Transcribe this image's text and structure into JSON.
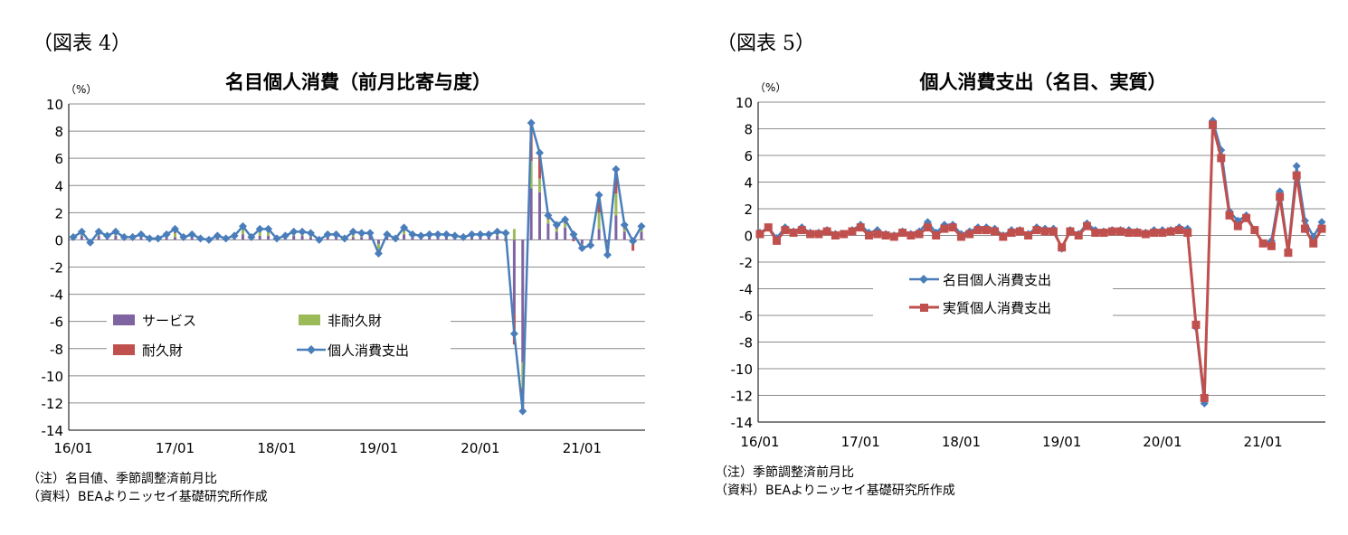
{
  "figure_labels": [
    "（図表 4）",
    "（図表 5）"
  ],
  "notes": {
    "chart1": [
      "（注）名目値、季節調整済前月比",
      "（資料）BEAよりニッセイ基礎研究所作成"
    ],
    "chart2": [
      "（注）季節調整済前月比",
      "（資料）BEAよりニッセイ基礎研究所作成"
    ]
  },
  "colors": {
    "services": "#8064A2",
    "nondurable": "#9BBB59",
    "durable": "#C0504D",
    "nominal": "#4A7EBB",
    "real": "#C0504D"
  },
  "chart_data": [
    {
      "type": "bar",
      "title": "名目個人消費（前月比寄与度）",
      "ylabel": "（%）",
      "ylim": [
        -14,
        10
      ],
      "yticks": [
        10,
        8,
        6,
        4,
        2,
        0,
        -2,
        -4,
        -6,
        -8,
        -10,
        -12,
        -14
      ],
      "xtick_labels": [
        "16/01",
        "17/01",
        "18/01",
        "19/01",
        "20/01",
        "21/01"
      ],
      "grid": true,
      "stacked": true,
      "series": [
        {
          "name": "サービス",
          "kind": "bar",
          "values": [
            0.1,
            0.3,
            0.0,
            0.3,
            0.2,
            0.3,
            0.1,
            0.1,
            0.2,
            0.1,
            0.1,
            0.2,
            0.2,
            0.1,
            0.2,
            0.1,
            0.0,
            0.2,
            0.1,
            0.2,
            0.4,
            0.1,
            0.3,
            0.3,
            0.1,
            0.2,
            0.3,
            0.3,
            0.2,
            0.1,
            0.2,
            0.2,
            0.1,
            0.2,
            0.2,
            0.3,
            -0.3,
            0.2,
            0.0,
            0.4,
            0.3,
            0.2,
            0.2,
            0.2,
            0.2,
            0.2,
            0.1,
            0.2,
            0.3,
            0.2,
            0.3,
            0.2,
            -5.5,
            -9.0,
            3.8,
            3.5,
            1.2,
            0.6,
            0.9,
            0.3,
            -0.3,
            -0.1,
            0.8,
            -0.2,
            1.8,
            0.6,
            0.1,
            0.6
          ]
        },
        {
          "name": "非耐久財",
          "kind": "bar",
          "values": [
            0.0,
            0.2,
            -0.1,
            0.2,
            0.1,
            0.1,
            0.0,
            0.1,
            0.1,
            0.0,
            0.0,
            0.1,
            0.3,
            0.0,
            0.1,
            0.0,
            0.0,
            0.1,
            0.0,
            0.1,
            0.4,
            0.0,
            0.3,
            0.3,
            0.0,
            0.1,
            0.2,
            0.1,
            0.1,
            -0.1,
            0.1,
            0.1,
            0.0,
            0.2,
            0.1,
            0.1,
            -0.4,
            0.1,
            0.0,
            0.3,
            0.1,
            0.1,
            0.1,
            0.1,
            0.1,
            0.1,
            0.0,
            0.1,
            0.1,
            0.1,
            0.2,
            0.4,
            0.8,
            -1.9,
            2.0,
            1.0,
            0.3,
            0.2,
            0.3,
            0.2,
            -0.2,
            -0.2,
            1.2,
            -0.5,
            1.6,
            0.2,
            -0.2,
            0.2
          ]
        },
        {
          "name": "耐久財",
          "kind": "bar",
          "values": [
            0.1,
            0.1,
            -0.1,
            0.1,
            0.0,
            0.2,
            0.1,
            0.0,
            0.1,
            0.0,
            0.0,
            0.1,
            0.3,
            0.1,
            0.1,
            0.0,
            0.0,
            0.0,
            0.0,
            0.0,
            0.2,
            0.1,
            0.2,
            0.2,
            0.0,
            0.0,
            0.1,
            0.2,
            0.2,
            0.0,
            0.1,
            0.1,
            0.0,
            0.2,
            0.2,
            0.1,
            -0.3,
            0.1,
            0.1,
            0.2,
            0.0,
            0.0,
            0.1,
            0.1,
            0.1,
            0.0,
            0.1,
            0.1,
            0.0,
            0.1,
            0.1,
            -0.1,
            -2.2,
            -1.7,
            2.8,
            1.9,
            0.3,
            0.3,
            0.3,
            -0.1,
            -0.1,
            -0.2,
            1.3,
            -0.4,
            1.8,
            0.3,
            -0.6,
            0.2
          ]
        },
        {
          "name": "個人消費支出",
          "kind": "line",
          "values": [
            0.2,
            0.6,
            -0.2,
            0.6,
            0.3,
            0.6,
            0.2,
            0.2,
            0.4,
            0.1,
            0.1,
            0.4,
            0.8,
            0.2,
            0.4,
            0.1,
            0.0,
            0.3,
            0.1,
            0.3,
            1.0,
            0.2,
            0.8,
            0.8,
            0.1,
            0.3,
            0.6,
            0.6,
            0.5,
            0.0,
            0.4,
            0.4,
            0.1,
            0.6,
            0.5,
            0.5,
            -1.0,
            0.4,
            0.1,
            0.9,
            0.4,
            0.3,
            0.4,
            0.4,
            0.4,
            0.3,
            0.2,
            0.4,
            0.4,
            0.4,
            0.6,
            0.5,
            -6.9,
            -12.6,
            8.6,
            6.4,
            1.8,
            1.1,
            1.5,
            0.4,
            -0.6,
            -0.4,
            3.3,
            -1.1,
            5.2,
            1.1,
            -0.1,
            1.0
          ]
        }
      ],
      "legend_placement": "lower-left"
    },
    {
      "type": "line",
      "title": "個人消費支出（名目、実質）",
      "ylabel": "（%）",
      "ylim": [
        -14,
        10
      ],
      "yticks": [
        10,
        8,
        6,
        4,
        2,
        0,
        -2,
        -4,
        -6,
        -8,
        -10,
        -12,
        -14
      ],
      "xtick_labels": [
        "16/01",
        "17/01",
        "18/01",
        "19/01",
        "20/01",
        "21/01"
      ],
      "grid": true,
      "series": [
        {
          "name": "名目個人消費支出",
          "marker": "diamond",
          "values": [
            0.2,
            0.6,
            -0.2,
            0.6,
            0.3,
            0.6,
            0.2,
            0.2,
            0.4,
            0.1,
            0.1,
            0.4,
            0.8,
            0.2,
            0.4,
            0.1,
            0.0,
            0.3,
            0.1,
            0.3,
            1.0,
            0.2,
            0.8,
            0.8,
            0.1,
            0.3,
            0.6,
            0.6,
            0.5,
            0.0,
            0.4,
            0.4,
            0.1,
            0.6,
            0.5,
            0.5,
            -1.0,
            0.4,
            0.1,
            0.9,
            0.4,
            0.3,
            0.4,
            0.4,
            0.4,
            0.3,
            0.2,
            0.4,
            0.4,
            0.4,
            0.6,
            0.5,
            -6.9,
            -12.6,
            8.6,
            6.4,
            1.8,
            1.1,
            1.5,
            0.4,
            -0.6,
            -0.4,
            3.3,
            -1.1,
            5.2,
            1.1,
            -0.1,
            1.0
          ]
        },
        {
          "name": "実質個人消費支出",
          "marker": "square",
          "values": [
            0.1,
            0.6,
            -0.4,
            0.4,
            0.2,
            0.4,
            0.1,
            0.1,
            0.3,
            0.0,
            0.1,
            0.3,
            0.6,
            0.0,
            0.1,
            0.0,
            -0.1,
            0.2,
            0.0,
            0.1,
            0.6,
            0.0,
            0.5,
            0.6,
            -0.1,
            0.1,
            0.4,
            0.4,
            0.3,
            -0.1,
            0.2,
            0.3,
            0.0,
            0.4,
            0.3,
            0.3,
            -0.9,
            0.3,
            0.0,
            0.7,
            0.2,
            0.2,
            0.3,
            0.3,
            0.2,
            0.2,
            0.1,
            0.2,
            0.2,
            0.3,
            0.4,
            0.2,
            -6.7,
            -12.2,
            8.3,
            5.8,
            1.5,
            0.7,
            1.3,
            0.4,
            -0.6,
            -0.8,
            2.9,
            -1.3,
            4.5,
            0.5,
            -0.6,
            0.5
          ]
        }
      ],
      "legend_placement": "center-left"
    }
  ]
}
